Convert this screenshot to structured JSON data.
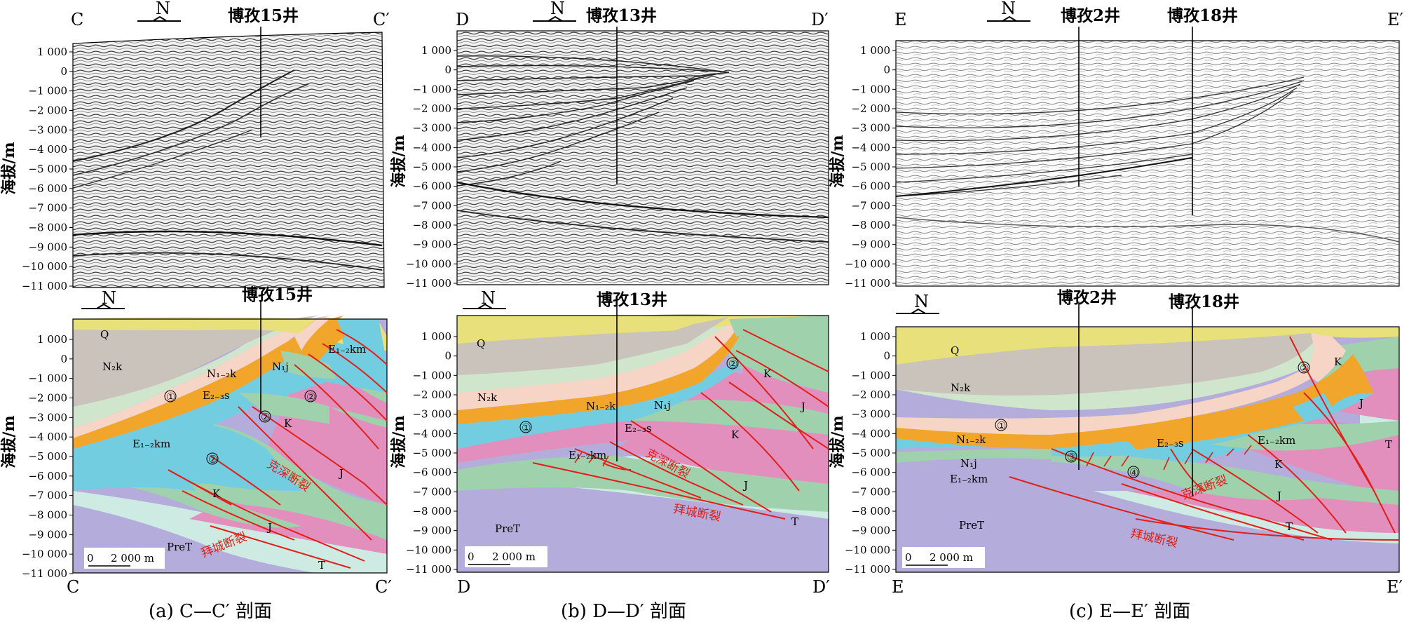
{
  "figure": {
    "y_axis_label": "海拔/m",
    "y_ticks": [
      "1 000",
      "0",
      "−1 000",
      "−2 000",
      "−3 000",
      "−4 000",
      "−5 000",
      "−6 000",
      "−7 000",
      "−8 000",
      "−9 000",
      "−10 000",
      "−11 000"
    ],
    "north_label": "N",
    "scale_bar_label": "2 000 m",
    "scale_bar_zero": "0",
    "panels": [
      {
        "id": "a",
        "start": "C",
        "end": "C′",
        "caption": "(a) C—C′ 剖面",
        "wells": [
          "博孜15井"
        ],
        "units": {
          "Q": "Q",
          "N2k": "N₂k",
          "N12k": "N₁₋₂k",
          "N1j": "N₁j",
          "E23s": "E₂₋₃s",
          "E12km_a": "E₁₋₂km",
          "E12km_b": "E₁₋₂km",
          "K": "K",
          "J_a": "J",
          "J_b": "J",
          "T": "T",
          "PreT": "PreT"
        },
        "faults": {
          "kesen": "克深断裂",
          "baicheng": "拜城断裂"
        },
        "circled": [
          "①",
          "②",
          "②",
          "②"
        ]
      },
      {
        "id": "b",
        "start": "D",
        "end": "D′",
        "caption": "(b) D—D′ 剖面",
        "wells": [
          "博孜13井"
        ],
        "units": {
          "Q": "Q",
          "N2k": "N₂k",
          "N12k": "N₁₋₂k",
          "N1j": "N₁j",
          "E23s": "E₂₋₃s",
          "E12km": "E₁₋₂km",
          "K_a": "K",
          "K_b": "K",
          "J_a": "J",
          "J_b": "J",
          "T": "T",
          "PreT": "PreT"
        },
        "faults": {
          "kesen": "克深断裂",
          "baicheng": "拜城断裂"
        },
        "circled": [
          "①",
          "②"
        ]
      },
      {
        "id": "c",
        "start": "E",
        "end": "E′",
        "caption": "(c) E—E′ 剖面",
        "wells": [
          "博孜2井",
          "博孜18井"
        ],
        "units": {
          "Q": "Q",
          "N2k": "N₂k",
          "N12k": "N₁₋₂k",
          "N1j": "N₁j",
          "E23s": "E₂₋₃s",
          "E12km_a": "E₁₋₂km",
          "E12km_b": "E₁₋₂km",
          "K_a": "K",
          "K_b": "K",
          "J_a": "J",
          "J_b": "J",
          "T_a": "T",
          "T_b": "T",
          "PreT": "PreT"
        },
        "faults": {
          "kesen": "克深断裂",
          "baicheng": "拜城断裂"
        },
        "circled": [
          "①",
          "②",
          "③",
          "④"
        ]
      }
    ],
    "colors": {
      "Q": "#e8e07a",
      "N2k": "#c9c3bc",
      "N12k": "#cfe6cc",
      "N1j": "#f6d4c6",
      "E23s": "#f2a52b",
      "E12km": "#73cde0",
      "K": "#9fd1ad",
      "J": "#e28fbe",
      "T": "#cdebe3",
      "PreT": "#b4addb",
      "fault": "#e0201a"
    }
  }
}
